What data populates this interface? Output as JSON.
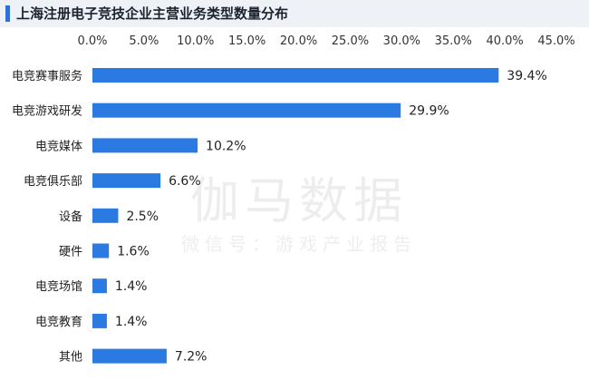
{
  "title": "上海注册电子竞技企业主营业务类型数量分布",
  "watermark": {
    "main": "伽马数据",
    "sub": "微信号：游戏产业报告"
  },
  "colors": {
    "bar": "#2a7ae2",
    "title_accent": "#2f6fd6",
    "title_bg": "#eef1f6"
  },
  "chart_data": {
    "type": "bar",
    "orientation": "horizontal",
    "categories": [
      "电竞赛事服务",
      "电竞游戏研发",
      "电竞媒体",
      "电竞俱乐部",
      "设备",
      "硬件",
      "电竞场馆",
      "电竞教育",
      "其他"
    ],
    "values": [
      39.4,
      29.9,
      10.2,
      6.6,
      2.5,
      1.6,
      1.4,
      1.4,
      7.2
    ],
    "value_labels": [
      "39.4%",
      "29.9%",
      "10.2%",
      "6.6%",
      "2.5%",
      "1.6%",
      "1.4%",
      "1.4%",
      "7.2%"
    ],
    "xlim": [
      0,
      45
    ],
    "x_ticks": [
      0,
      5,
      10,
      15,
      20,
      25,
      30,
      35,
      40,
      45
    ],
    "x_tick_labels": [
      "0.0%",
      "5.0%",
      "10.0%",
      "15.0%",
      "20.0%",
      "25.0%",
      "30.0%",
      "35.0%",
      "40.0%",
      "45.0%"
    ],
    "x_axis_position": "top",
    "grid": false,
    "legend": "none"
  }
}
